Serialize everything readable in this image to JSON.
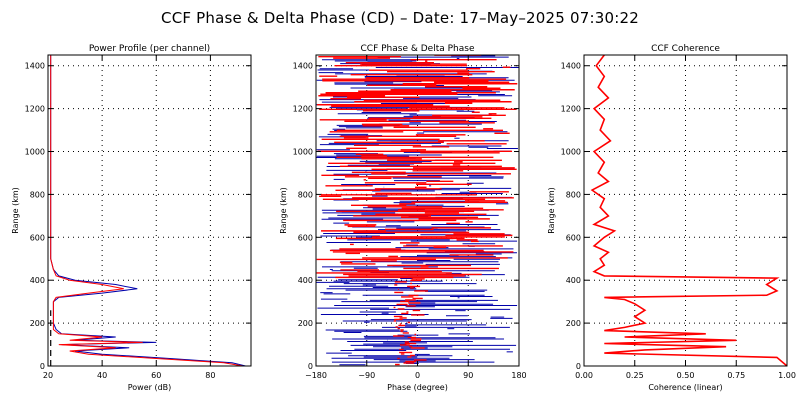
{
  "title": "CCF Phase & Delta Phase (CD) – Date: 17–May–2025 07:30:22",
  "colors": {
    "ch1": "#0000aa",
    "ch2": "#ff0000",
    "cc": "#ff0000"
  },
  "chart_data": [
    {
      "type": "line",
      "title": "Power Profile (per channel)",
      "xlabel": "Power (dB)",
      "ylabel": "Range (km)",
      "xlim": [
        20,
        95
      ],
      "ylim": [
        0,
        1450
      ],
      "xticks": [
        "20",
        "40",
        "60",
        "80"
      ],
      "xtick_values": [
        20,
        40,
        60,
        80
      ],
      "yticks": [
        "0",
        "200",
        "400",
        "600",
        "800",
        "1000",
        "1200",
        "1400"
      ],
      "ytick_values": [
        0,
        200,
        400,
        600,
        800,
        1000,
        1200,
        1400
      ],
      "grid": true,
      "series": [
        {
          "color": "#0000aa",
          "points": [
            [
              93,
              0
            ],
            [
              88,
              15
            ],
            [
              65,
              35
            ],
            [
              40,
              55
            ],
            [
              30,
              70
            ],
            [
              50,
              85
            ],
            [
              25,
              100
            ],
            [
              60,
              110
            ],
            [
              30,
              120
            ],
            [
              45,
              135
            ],
            [
              25,
              150
            ],
            [
              23,
              170
            ],
            [
              22,
              200
            ],
            [
              22,
              250
            ],
            [
              22,
              300
            ],
            [
              24,
              320
            ],
            [
              40,
              340
            ],
            [
              53,
              360
            ],
            [
              45,
              380
            ],
            [
              30,
              400
            ],
            [
              24,
              420
            ],
            [
              22,
              450
            ],
            [
              21,
              500
            ],
            [
              21,
              600
            ],
            [
              21,
              800
            ],
            [
              21,
              1000
            ],
            [
              21,
              1200
            ],
            [
              21,
              1450
            ]
          ]
        },
        {
          "color": "#ff0000",
          "points": [
            [
              92,
              0
            ],
            [
              85,
              15
            ],
            [
              60,
              35
            ],
            [
              35,
              55
            ],
            [
              28,
              70
            ],
            [
              45,
              85
            ],
            [
              24,
              100
            ],
            [
              55,
              110
            ],
            [
              28,
              120
            ],
            [
              40,
              135
            ],
            [
              24,
              150
            ],
            [
              22,
              170
            ],
            [
              22,
              200
            ],
            [
              22,
              250
            ],
            [
              22,
              300
            ],
            [
              23,
              320
            ],
            [
              35,
              340
            ],
            [
              48,
              360
            ],
            [
              40,
              380
            ],
            [
              28,
              400
            ],
            [
              23,
              420
            ],
            [
              22,
              450
            ],
            [
              21,
              500
            ],
            [
              21,
              600
            ],
            [
              21,
              800
            ],
            [
              21,
              1000
            ],
            [
              21,
              1200
            ],
            [
              21,
              1450
            ]
          ]
        }
      ]
    },
    {
      "type": "scatter",
      "title": "CCF Phase & Delta Phase",
      "xlabel": "Phase (degree)",
      "ylabel": "Range (km)",
      "xlim": [
        -180,
        180
      ],
      "ylim": [
        0,
        1450
      ],
      "xticks": [
        "−180",
        "−90",
        "0",
        "90",
        "180"
      ],
      "xtick_values": [
        -180,
        -90,
        0,
        90,
        180
      ],
      "yticks": [
        "0",
        "200",
        "400",
        "600",
        "800",
        "1000",
        "1200",
        "1400"
      ],
      "ytick_values": [
        0,
        200,
        400,
        600,
        800,
        1000,
        1200,
        1400
      ],
      "grid": true,
      "series": [
        {
          "color": "#0000aa",
          "description_points": "wrapped phase per range gate, spans full -180..180"
        },
        {
          "color": "#ff0000",
          "description_points": "delta phase, near -30..0 deg below 400 km, wrapped above"
        }
      ]
    },
    {
      "type": "line",
      "title": "CCF Coherence",
      "xlabel": "Coherence (linear)",
      "ylabel": "Range (km)",
      "xlim": [
        0,
        1
      ],
      "ylim": [
        0,
        1450
      ],
      "xticks": [
        "0.00",
        "0.25",
        "0.50",
        "0.75",
        "1.00"
      ],
      "xtick_values": [
        0,
        0.25,
        0.5,
        0.75,
        1
      ],
      "yticks": [
        "0",
        "200",
        "400",
        "600",
        "800",
        "1000",
        "1200",
        "1400"
      ],
      "ytick_values": [
        0,
        200,
        400,
        600,
        800,
        1000,
        1200,
        1400
      ],
      "grid": true,
      "series": [
        {
          "color": "#ff0000",
          "points": [
            [
              1.0,
              0
            ],
            [
              0.95,
              40
            ],
            [
              0.1,
              60
            ],
            [
              0.3,
              75
            ],
            [
              0.7,
              90
            ],
            [
              0.1,
              105
            ],
            [
              0.75,
              120
            ],
            [
              0.2,
              135
            ],
            [
              0.6,
              150
            ],
            [
              0.1,
              165
            ],
            [
              0.2,
              180
            ],
            [
              0.3,
              200
            ],
            [
              0.25,
              230
            ],
            [
              0.3,
              260
            ],
            [
              0.25,
              290
            ],
            [
              0.2,
              310
            ],
            [
              0.1,
              320
            ],
            [
              0.9,
              330
            ],
            [
              0.95,
              350
            ],
            [
              0.9,
              380
            ],
            [
              0.95,
              410
            ],
            [
              0.1,
              420
            ],
            [
              0.05,
              440
            ],
            [
              0.1,
              470
            ],
            [
              0.08,
              500
            ],
            [
              0.12,
              530
            ],
            [
              0.05,
              560
            ],
            [
              0.1,
              600
            ],
            [
              0.15,
              630
            ],
            [
              0.05,
              660
            ],
            [
              0.12,
              700
            ],
            [
              0.08,
              740
            ],
            [
              0.1,
              780
            ],
            [
              0.04,
              820
            ],
            [
              0.12,
              860
            ],
            [
              0.07,
              900
            ],
            [
              0.1,
              950
            ],
            [
              0.05,
              1000
            ],
            [
              0.13,
              1050
            ],
            [
              0.08,
              1100
            ],
            [
              0.1,
              1150
            ],
            [
              0.05,
              1200
            ],
            [
              0.12,
              1250
            ],
            [
              0.07,
              1300
            ],
            [
              0.1,
              1350
            ],
            [
              0.06,
              1400
            ],
            [
              0.1,
              1450
            ]
          ]
        }
      ]
    }
  ]
}
